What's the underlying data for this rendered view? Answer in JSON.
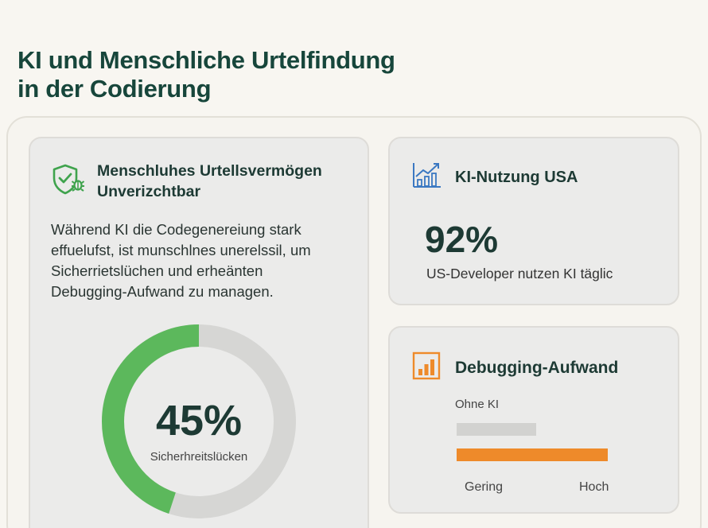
{
  "title": {
    "line1": "KI und Menschliche Urtelfindung",
    "line2": "in der Codierung"
  },
  "left_card": {
    "icon": "shield-bug-icon",
    "heading_line1": "Menschluhes Urtellsvermögen",
    "heading_line2": "Unverizchtbar",
    "body_lines": [
      "Während KI die Codegenereiung stark",
      "effuelufst, ist munschlnes unerelssil, um",
      "Sicherrietslüchen und erheänten",
      "Debugging-Aufwand zu managen."
    ],
    "ring_value": "45%",
    "ring_fraction": 0.45,
    "ring_label": "Sicherhreitslücken",
    "ring_color": "#5cb85c",
    "ring_track_color": "#d6d6d4"
  },
  "usa_card": {
    "icon": "growth-chart-icon",
    "heading": "KI-Nutzung USA",
    "value": "92%",
    "label": "US-Developer nutzen KI täglic"
  },
  "debug_card": {
    "icon": "bar-chart-icon",
    "heading": "Debugging-Aufwand",
    "bar_label": "Ohne KI",
    "axis_low": "Gering",
    "axis_high": "Hoch",
    "bar_colors": [
      "#d2d2d0",
      "#ee8a2a"
    ]
  }
}
